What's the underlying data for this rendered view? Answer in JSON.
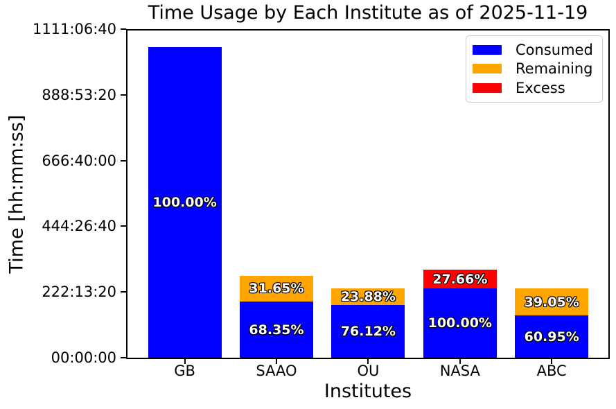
{
  "chart_data": {
    "type": "bar",
    "stacked": true,
    "title": "Time Usage by Each Institute as of 2025-11-19",
    "xlabel": "Institutes",
    "ylabel": "Time [hh:mm:ss]",
    "categories": [
      "GB",
      "SAAO",
      "OU",
      "NASA",
      "ABC"
    ],
    "value_unit": "seconds",
    "ylim": [
      0,
      4000000
    ],
    "grid": false,
    "yticks": [
      {
        "value": 0,
        "label": "00:00:00"
      },
      {
        "value": 800000,
        "label": "222:13:20"
      },
      {
        "value": 1600000,
        "label": "444:26:40"
      },
      {
        "value": 2400000,
        "label": "666:40:00"
      },
      {
        "value": 3200000,
        "label": "888:53:20"
      },
      {
        "value": 4000000,
        "label": "1111:06:40"
      }
    ],
    "series": [
      {
        "name": "Consumed",
        "color": "#0000ff",
        "values": [
          3780000,
          683500,
          639408,
          840000,
          511980
        ],
        "percent_labels": [
          "100.00%",
          "68.35%",
          "76.12%",
          "100.00%",
          "60.95%"
        ]
      },
      {
        "name": "Remaining",
        "color": "#ffa500",
        "values": [
          0,
          316500,
          200592,
          0,
          328020
        ],
        "percent_labels": [
          null,
          "31.65%",
          "23.88%",
          null,
          "39.05%"
        ]
      },
      {
        "name": "Excess",
        "color": "#ff0000",
        "values": [
          0,
          0,
          0,
          232344,
          0
        ],
        "percent_labels": [
          null,
          null,
          null,
          "27.66%",
          null
        ]
      }
    ],
    "legend": {
      "position": "upper right",
      "entries": [
        "Consumed",
        "Remaining",
        "Excess"
      ]
    },
    "bar_label_style": {
      "color": "#ffffff",
      "outline": "#000000",
      "bold": true
    }
  }
}
